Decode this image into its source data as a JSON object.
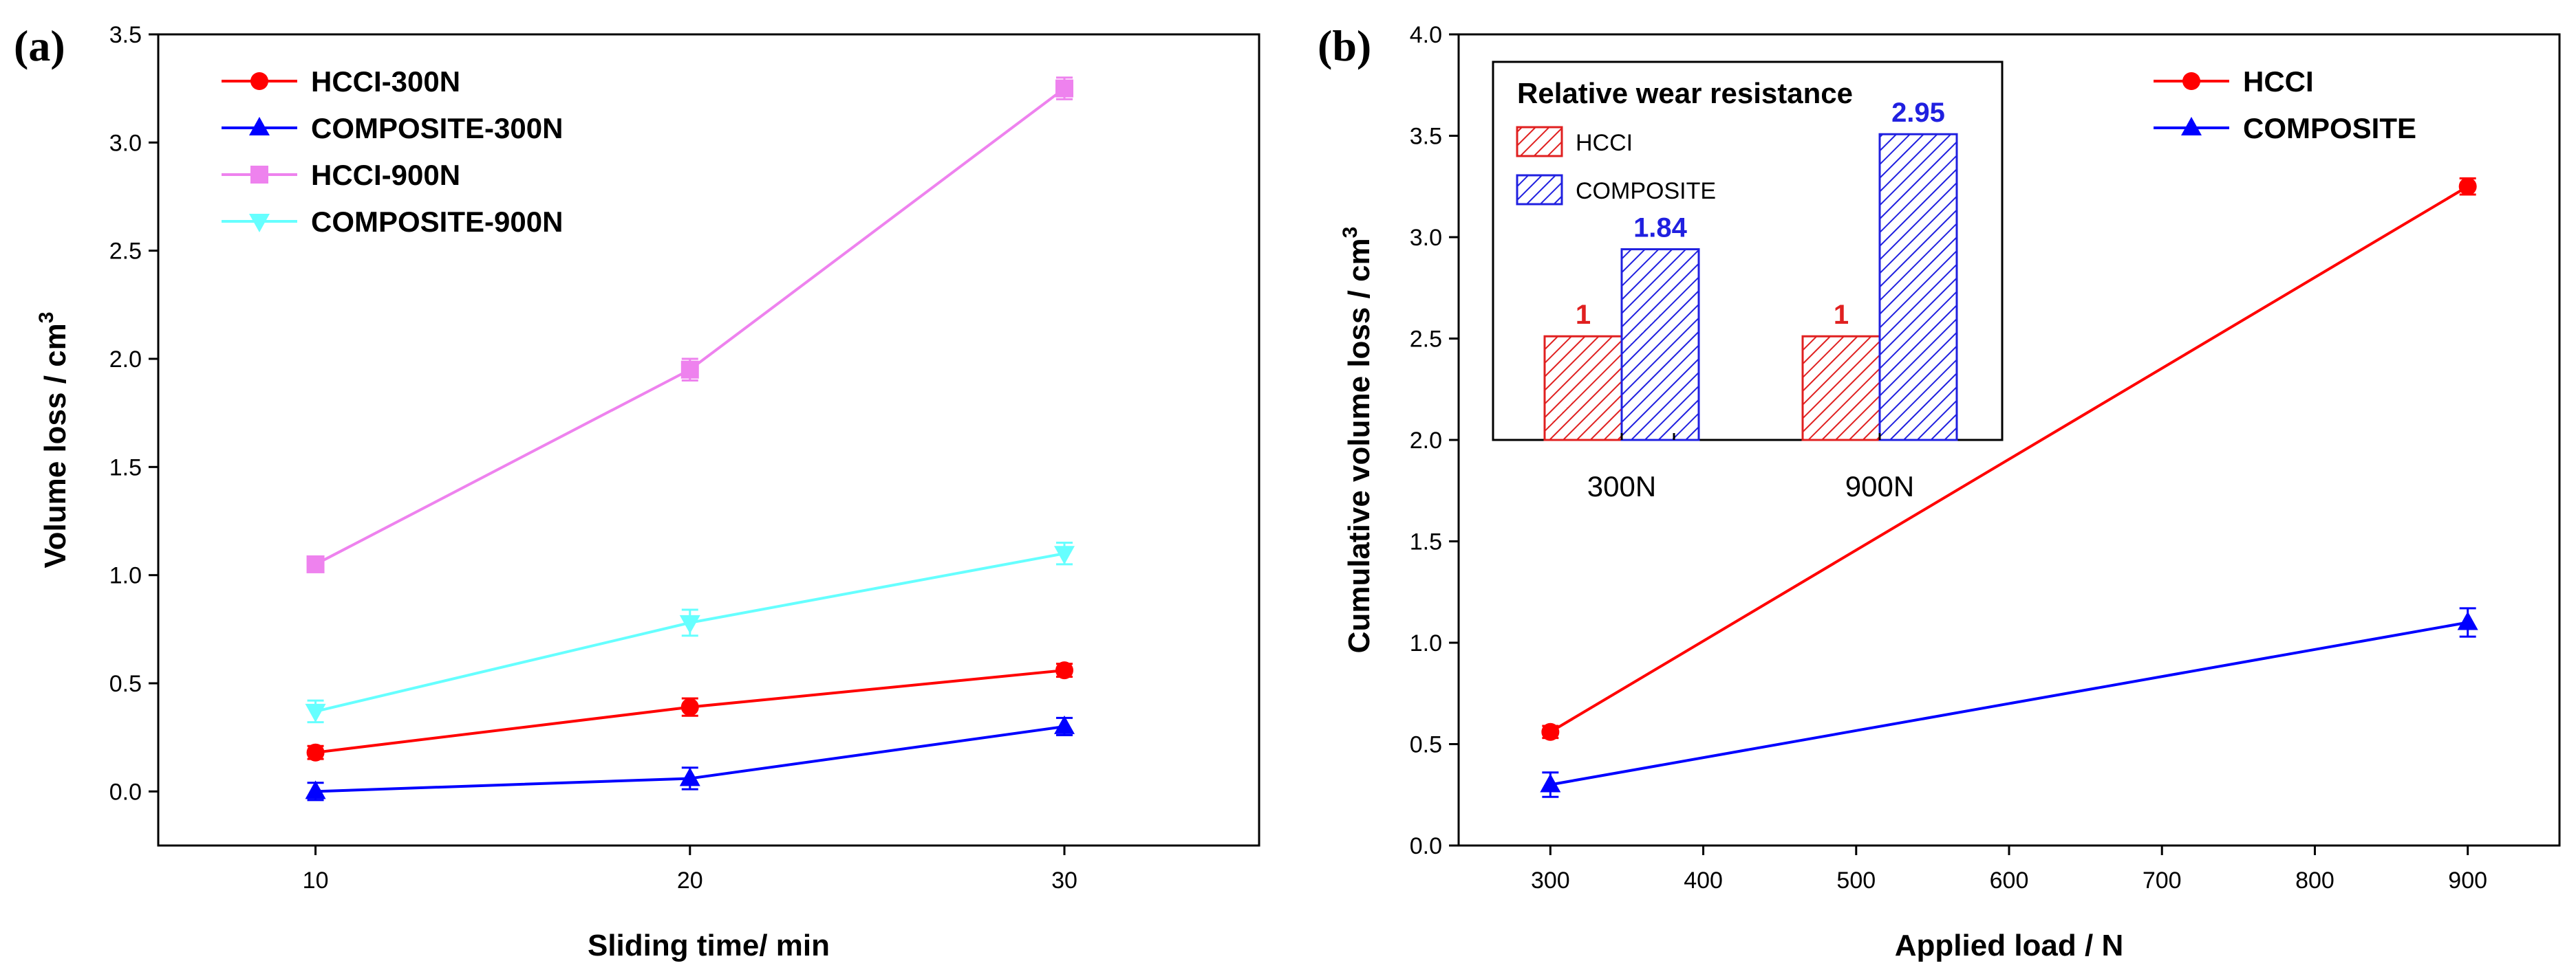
{
  "chart_data": [
    {
      "panel": "(a)",
      "type": "line",
      "xlabel": "Sliding time/ min",
      "ylabel": "Volume loss / cm",
      "ylabel_superscript": "3",
      "x": [
        10,
        20,
        30
      ],
      "x_ticks": [
        "10",
        "20",
        "30"
      ],
      "xlim": [
        5.8,
        35.2
      ],
      "ylim": [
        -0.25,
        3.5
      ],
      "y_ticks": [
        "0.0",
        "0.5",
        "1.0",
        "1.5",
        "2.0",
        "2.5",
        "3.0",
        "3.5"
      ],
      "legend_position": "top-left",
      "series": [
        {
          "name": "HCCI-300N",
          "color": "#ff0000",
          "marker": "circle",
          "values": [
            0.18,
            0.39,
            0.56
          ],
          "errors": [
            0.03,
            0.04,
            0.03
          ]
        },
        {
          "name": "COMPOSITE-300N",
          "color": "#0000ff",
          "marker": "triangle-up",
          "values": [
            0.0,
            0.06,
            0.3
          ],
          "errors": [
            0.04,
            0.05,
            0.04
          ]
        },
        {
          "name": "HCCI-900N",
          "color": "#ee82ee",
          "marker": "square",
          "values": [
            1.05,
            1.95,
            3.25
          ],
          "errors": [
            0.03,
            0.05,
            0.05
          ]
        },
        {
          "name": "COMPOSITE-900N",
          "color": "#66ffff",
          "marker": "triangle-down",
          "values": [
            0.37,
            0.78,
            1.1
          ],
          "errors": [
            0.05,
            0.06,
            0.05
          ]
        }
      ]
    },
    {
      "panel": "(b)",
      "type": "line",
      "xlabel": "Applied load / N",
      "ylabel": "Cumulative volume loss / cm",
      "ylabel_superscript": "3",
      "x": [
        300,
        900
      ],
      "x_ticks": [
        "300",
        "400",
        "500",
        "600",
        "700",
        "800",
        "900"
      ],
      "xlim": [
        240,
        960
      ],
      "ylim": [
        0.0,
        4.0
      ],
      "y_ticks": [
        "0.0",
        "0.5",
        "1.0",
        "1.5",
        "2.0",
        "2.5",
        "3.0",
        "3.5",
        "4.0"
      ],
      "legend_position": "top-right",
      "series": [
        {
          "name": "HCCI",
          "color": "#ff0000",
          "marker": "circle",
          "values": [
            0.56,
            3.25
          ],
          "errors": [
            0.03,
            0.04
          ]
        },
        {
          "name": "COMPOSITE",
          "color": "#0000ff",
          "marker": "triangle-up",
          "values": [
            0.3,
            1.1
          ],
          "errors": [
            0.06,
            0.07
          ]
        }
      ],
      "inset": {
        "type": "bar",
        "title": "Relative wear resistance",
        "categories": [
          "300N",
          "900N"
        ],
        "series": [
          {
            "name": "HCCI",
            "color": "#e02020",
            "values": [
              1,
              1
            ],
            "labels": [
              "1",
              "1"
            ]
          },
          {
            "name": "COMPOSITE",
            "color": "#2020e0",
            "values": [
              1.84,
              2.95
            ],
            "labels": [
              "1.84",
              "2.95"
            ]
          }
        ],
        "ylim": [
          0,
          3.25
        ]
      }
    }
  ]
}
